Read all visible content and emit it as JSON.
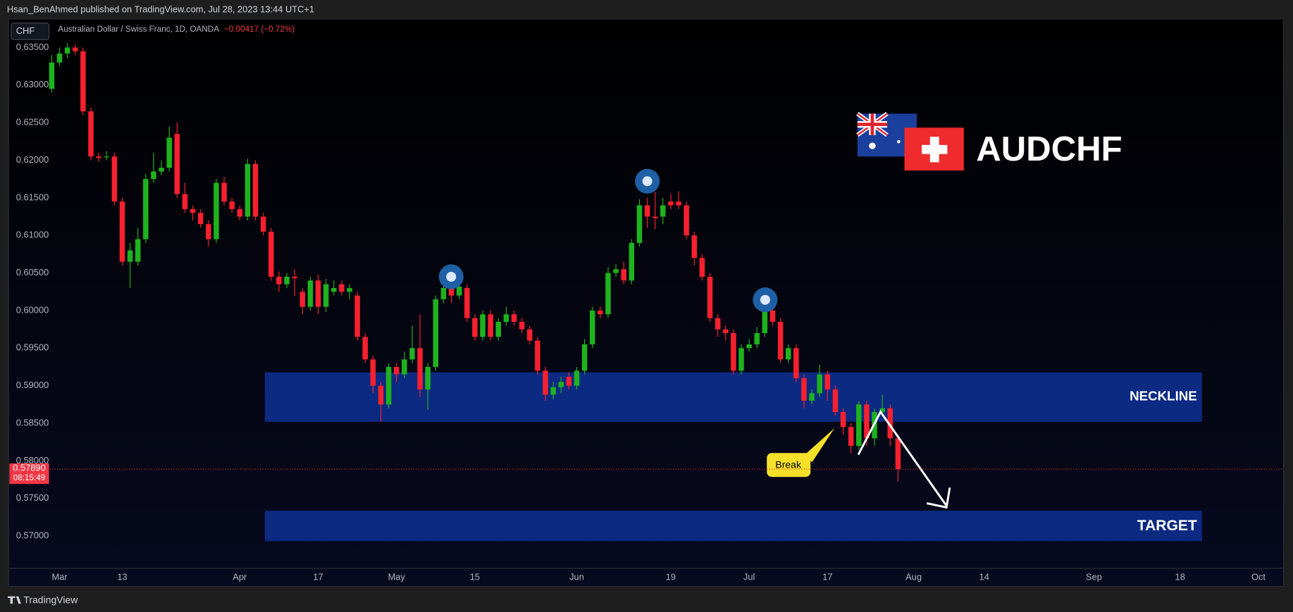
{
  "header": "Hsan_BenAhmed published on TradingView.com, Jul 28, 2023 13:44 UTC+1",
  "footer": "TradingView",
  "chart_data": {
    "type": "candlestick",
    "currency": "CHF",
    "title": "Australian Dollar / Swiss Franc, 1D, OANDA",
    "change": "−0.00417 (−0.72%)",
    "brand": "AUDCHF",
    "annotations": {
      "neckline": "NECKLINE",
      "target": "TARGET",
      "break": "Break"
    },
    "last_price": {
      "value": 0.5789,
      "label": "0.57890"
    },
    "countdown": "08:15:49",
    "up_color": "#1fb21f",
    "down_color": "#f7202f",
    "open": [
      0.6295,
      0.633,
      0.6342,
      0.635,
      0.6345,
      0.6265,
      0.6205,
      0.6205,
      0.6205,
      0.6145,
      0.6065,
      0.6065,
      0.6095,
      0.6175,
      0.6185,
      0.619,
      0.6235,
      0.6155,
      0.6135,
      0.613,
      0.6115,
      0.6095,
      0.617,
      0.6145,
      0.6135,
      0.6125,
      0.6195,
      0.6125,
      0.6105,
      0.6045,
      0.6035,
      0.6045,
      0.6025,
      0.6005,
      0.604,
      0.6005,
      0.6025,
      0.6035,
      0.6025,
      0.602,
      0.5965,
      0.5935,
      0.59,
      0.5875,
      0.5925,
      0.5915,
      0.5935,
      0.595,
      0.5895,
      0.5925,
      0.6015,
      0.603,
      0.602,
      0.603,
      0.599,
      0.5965,
      0.5995,
      0.5965,
      0.5985,
      0.5995,
      0.5985,
      0.5975,
      0.596,
      0.592,
      0.5888,
      0.5898,
      0.5912,
      0.59,
      0.592,
      0.5955,
      0.6,
      0.5995,
      0.605,
      0.6055,
      0.604,
      0.609,
      0.614,
      0.6125,
      0.6125,
      0.6145,
      0.6145,
      0.614,
      0.61,
      0.607,
      0.6045,
      0.599,
      0.5975,
      0.597,
      0.592,
      0.595,
      0.5955,
      0.597,
      0.6,
      0.5985,
      0.5935,
      0.595,
      0.591,
      0.588,
      0.589,
      0.5915,
      0.5895,
      0.5865,
      0.5845,
      0.582,
      0.5875,
      0.583,
      0.5865,
      0.587,
      0.583
    ],
    "high": [
      0.634,
      0.635,
      0.6356,
      0.6354,
      0.635,
      0.627,
      0.621,
      0.6212,
      0.621,
      0.615,
      0.609,
      0.611,
      0.6182,
      0.621,
      0.62,
      0.6245,
      0.625,
      0.617,
      0.614,
      0.6135,
      0.612,
      0.6175,
      0.6178,
      0.615,
      0.614,
      0.6202,
      0.62,
      0.613,
      0.611,
      0.6052,
      0.605,
      0.6055,
      0.603,
      0.6045,
      0.6048,
      0.6042,
      0.604,
      0.604,
      0.6035,
      0.6025,
      0.597,
      0.594,
      0.5905,
      0.593,
      0.593,
      0.5945,
      0.598,
      0.5995,
      0.593,
      0.602,
      0.6045,
      0.6045,
      0.604,
      0.6035,
      0.5995,
      0.6,
      0.6,
      0.599,
      0.6005,
      0.6,
      0.599,
      0.598,
      0.5965,
      0.5925,
      0.5905,
      0.5912,
      0.5918,
      0.5925,
      0.5962,
      0.6005,
      0.6005,
      0.6058,
      0.6062,
      0.6065,
      0.6095,
      0.6148,
      0.615,
      0.6158,
      0.615,
      0.6155,
      0.6158,
      0.6145,
      0.6105,
      0.6075,
      0.605,
      0.5995,
      0.598,
      0.5975,
      0.5955,
      0.5962,
      0.5978,
      0.6005,
      0.6005,
      0.599,
      0.5955,
      0.5955,
      0.5915,
      0.5895,
      0.5928,
      0.592,
      0.59,
      0.587,
      0.585,
      0.588,
      0.588,
      0.587,
      0.5888,
      0.5875,
      0.5835
    ],
    "low": [
      0.629,
      0.6325,
      0.6336,
      0.634,
      0.626,
      0.62,
      0.6198,
      0.62,
      0.614,
      0.606,
      0.603,
      0.606,
      0.609,
      0.617,
      0.618,
      0.6185,
      0.615,
      0.613,
      0.612,
      0.611,
      0.6085,
      0.609,
      0.614,
      0.613,
      0.612,
      0.612,
      0.612,
      0.61,
      0.604,
      0.6025,
      0.603,
      0.602,
      0.5995,
      0.6,
      0.5995,
      0.5998,
      0.602,
      0.602,
      0.6015,
      0.596,
      0.593,
      0.589,
      0.5852,
      0.587,
      0.5905,
      0.591,
      0.593,
      0.5885,
      0.5868,
      0.592,
      0.601,
      0.601,
      0.6015,
      0.5985,
      0.596,
      0.596,
      0.596,
      0.596,
      0.598,
      0.598,
      0.597,
      0.5955,
      0.5915,
      0.588,
      0.5882,
      0.589,
      0.5895,
      0.5895,
      0.5915,
      0.595,
      0.599,
      0.599,
      0.6045,
      0.6035,
      0.6035,
      0.6085,
      0.611,
      0.6108,
      0.6115,
      0.6135,
      0.6135,
      0.6095,
      0.606,
      0.604,
      0.5985,
      0.5965,
      0.596,
      0.5915,
      0.5915,
      0.5945,
      0.595,
      0.5965,
      0.598,
      0.593,
      0.593,
      0.5905,
      0.587,
      0.5875,
      0.5885,
      0.588,
      0.586,
      0.5835,
      0.581,
      0.5815,
      0.582,
      0.582,
      0.586,
      0.582,
      0.5773
    ],
    "close": [
      0.633,
      0.6342,
      0.635,
      0.6345,
      0.6265,
      0.6205,
      0.6203,
      0.6205,
      0.6145,
      0.6065,
      0.608,
      0.6095,
      0.6175,
      0.6185,
      0.619,
      0.623,
      0.6155,
      0.6135,
      0.613,
      0.6115,
      0.6095,
      0.617,
      0.6145,
      0.6135,
      0.6125,
      0.6195,
      0.6125,
      0.6105,
      0.6045,
      0.6035,
      0.6045,
      0.6043,
      0.6005,
      0.604,
      0.6005,
      0.6035,
      0.603,
      0.6025,
      0.603,
      0.5965,
      0.5935,
      0.59,
      0.5875,
      0.5925,
      0.5915,
      0.5935,
      0.595,
      0.5895,
      0.5925,
      0.6015,
      0.603,
      0.602,
      0.6032,
      0.599,
      0.5965,
      0.5995,
      0.5965,
      0.5985,
      0.5995,
      0.5985,
      0.5975,
      0.596,
      0.592,
      0.5888,
      0.5898,
      0.5905,
      0.59,
      0.592,
      0.5955,
      0.6,
      0.5995,
      0.605,
      0.6055,
      0.604,
      0.609,
      0.614,
      0.6125,
      0.6123,
      0.614,
      0.614,
      0.614,
      0.61,
      0.607,
      0.6045,
      0.599,
      0.5975,
      0.597,
      0.592,
      0.595,
      0.5955,
      0.597,
      0.6,
      0.5985,
      0.5935,
      0.595,
      0.591,
      0.588,
      0.589,
      0.5915,
      0.5895,
      0.5865,
      0.5845,
      0.582,
      0.5875,
      0.583,
      0.5865,
      0.587,
      0.583,
      0.5789
    ],
    "xlim": [
      -5.5,
      157.2
    ],
    "xticks": [
      {
        "value": 1,
        "label": "Mar"
      },
      {
        "value": 9,
        "label": "13"
      },
      {
        "value": 24,
        "label": "Apr"
      },
      {
        "value": 34,
        "label": "17"
      },
      {
        "value": 44,
        "label": "May"
      },
      {
        "value": 54,
        "label": "15"
      },
      {
        "value": 67,
        "label": "Jun"
      },
      {
        "value": 79,
        "label": "19"
      },
      {
        "value": 89,
        "label": "Jul"
      },
      {
        "value": 99,
        "label": "17"
      },
      {
        "value": 110,
        "label": "Aug"
      },
      {
        "value": 119,
        "label": "14"
      },
      {
        "value": 133,
        "label": "Sep"
      },
      {
        "value": 144,
        "label": "18"
      },
      {
        "value": 154,
        "label": "Oct"
      }
    ],
    "ylim": [
      0.5657,
      0.6388
    ],
    "yticks": [
      {
        "value": 0.635,
        "label": "0.63500"
      },
      {
        "value": 0.63,
        "label": "0.63000"
      },
      {
        "value": 0.625,
        "label": "0.62500"
      },
      {
        "value": 0.62,
        "label": "0.62000"
      },
      {
        "value": 0.615,
        "label": "0.61500"
      },
      {
        "value": 0.61,
        "label": "0.61000"
      },
      {
        "value": 0.605,
        "label": "0.60500"
      },
      {
        "value": 0.6,
        "label": "0.60000"
      },
      {
        "value": 0.595,
        "label": "0.59500"
      },
      {
        "value": 0.59,
        "label": "0.59000"
      },
      {
        "value": 0.585,
        "label": "0.58500"
      },
      {
        "value": 0.58,
        "label": "0.58000"
      },
      {
        "value": 0.575,
        "label": "0.57500"
      },
      {
        "value": 0.57,
        "label": "0.57000"
      }
    ]
  }
}
